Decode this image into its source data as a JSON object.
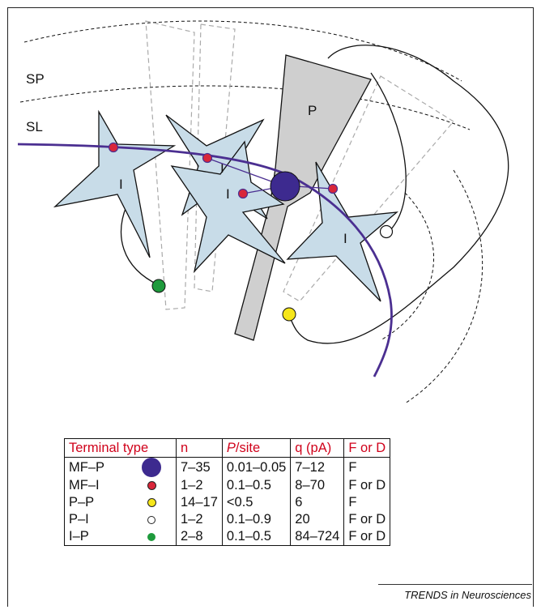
{
  "diagram": {
    "layer_labels": [
      "SP",
      "SL"
    ],
    "cell_labels": {
      "pyramidal": "P",
      "interneuron": "I"
    },
    "colors": {
      "mossy_fiber": "#4b2f91",
      "mf_p_terminal": "#3d2a8f",
      "mf_i_terminal": "#d9263a",
      "p_p_terminal": "#f6e61a",
      "p_i_terminal": "#ffffff",
      "i_p_terminal": "#1e9a3c",
      "interneuron_fill": "#c8dce8",
      "pyramidal_fill": "#cfcfcf"
    }
  },
  "table": {
    "headers": [
      "Terminal type",
      "n",
      "P/site",
      "q (pA)",
      "F or D"
    ],
    "rows": [
      {
        "type": "MF–P",
        "symbol": "mf_p",
        "n": "7–35",
        "p_site": "0.01–0.05",
        "q": "7–12",
        "fd": "F"
      },
      {
        "type": "MF–I",
        "symbol": "mf_i",
        "n": "1–2",
        "p_site": "0.1–0.5",
        "q": "8–70",
        "fd": "F or D"
      },
      {
        "type": "P–P",
        "symbol": "p_p",
        "n": "14–17",
        "p_site": "<0.5",
        "q": "6",
        "fd": "F"
      },
      {
        "type": "P–I",
        "symbol": "p_i",
        "n": "1–2",
        "p_site": "0.1–0.9",
        "q": "20",
        "fd": "F or D"
      },
      {
        "type": "I–P",
        "symbol": "i_p",
        "n": "2–8",
        "p_site": "0.1–0.5",
        "q": "84–724",
        "fd": "F or D"
      }
    ]
  },
  "credit": "TRENDS in Neurosciences"
}
